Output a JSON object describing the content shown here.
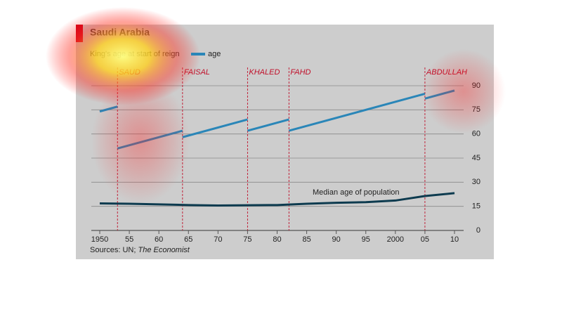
{
  "chart_data": {
    "type": "line",
    "title": "Saudi Arabia",
    "subtitle": "King's age at start of reign",
    "source": "Sources: UN;",
    "source_italic": "The Economist",
    "xlim": [
      1950,
      2010
    ],
    "xticks": [
      1950,
      {
        "value": 1955,
        "label": "55"
      },
      {
        "value": 1960,
        "label": "60"
      },
      {
        "value": 1965,
        "label": "65"
      },
      {
        "value": 1970,
        "label": "70"
      },
      {
        "value": 1975,
        "label": "75"
      },
      {
        "value": 1980,
        "label": "80"
      },
      {
        "value": 1985,
        "label": "85"
      },
      {
        "value": 1990,
        "label": "90"
      },
      {
        "value": 1995,
        "label": "95"
      },
      2000,
      {
        "value": 2005,
        "label": "05"
      },
      {
        "value": 2010,
        "label": "10"
      }
    ],
    "ylim": [
      0,
      90
    ],
    "yticks": [
      0,
      15,
      30,
      45,
      60,
      75,
      90
    ],
    "grid": true,
    "kings": {
      "name": "age",
      "color": "#2a86b8",
      "segments": [
        {
          "x": [
            1950,
            1953
          ],
          "values": [
            74,
            77
          ]
        },
        {
          "x": [
            1953,
            1964
          ],
          "values": [
            51,
            62
          ]
        },
        {
          "x": [
            1964,
            1975
          ],
          "values": [
            58,
            69
          ]
        },
        {
          "x": [
            1975,
            1982
          ],
          "values": [
            62,
            69
          ]
        },
        {
          "x": [
            1982,
            2005
          ],
          "values": [
            62,
            85
          ]
        },
        {
          "x": [
            2005,
            2010
          ],
          "values": [
            82,
            87
          ]
        }
      ]
    },
    "median": {
      "name": "Median age of population",
      "color": "#0d3b4f",
      "x": [
        1950,
        1955,
        1960,
        1965,
        1970,
        1975,
        1980,
        1985,
        1990,
        1995,
        2000,
        2005,
        2010
      ],
      "values": [
        16.8,
        16.6,
        16.2,
        15.8,
        15.5,
        15.7,
        15.8,
        16.6,
        17.2,
        17.6,
        18.6,
        21.4,
        23.2
      ]
    },
    "reigns": [
      {
        "label": "SAUD",
        "x": 1953
      },
      {
        "label": "FAISAL",
        "x": 1964
      },
      {
        "label": "KHALED",
        "x": 1975
      },
      {
        "label": "FAHD",
        "x": 1982
      },
      {
        "label": "ABDULLAH",
        "x": 2005
      }
    ]
  }
}
